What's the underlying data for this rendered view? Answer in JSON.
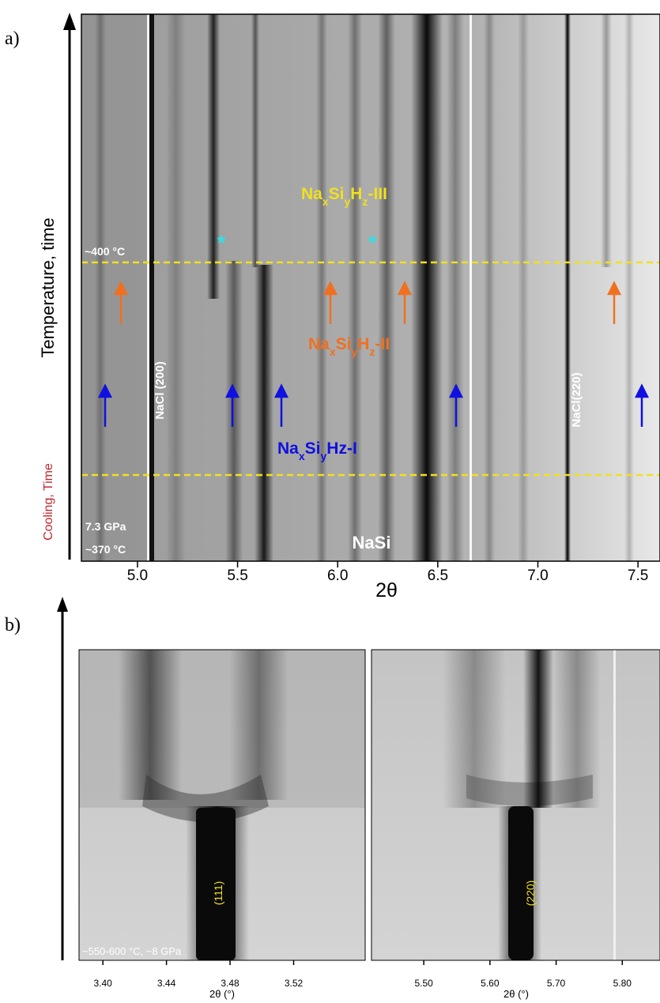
{
  "panel_a": {
    "label": "a)",
    "y_label": "Temperature, time",
    "x_label": "2θ",
    "xlim": [
      4.72,
      7.61
    ],
    "xticks": [
      {
        "value": 5.0,
        "label": "5.0"
      },
      {
        "value": 5.5,
        "label": "5.5"
      },
      {
        "value": 6.0,
        "label": "6.0"
      },
      {
        "value": 6.5,
        "label": "6.5"
      },
      {
        "value": 7.0,
        "label": "7.0"
      },
      {
        "value": 7.5,
        "label": "7.5"
      }
    ],
    "phases": {
      "III": [
        "Na",
        "x",
        "Si",
        "y",
        "H",
        "z",
        "-III"
      ],
      "II": [
        "Na",
        "x",
        "Si",
        "y",
        "H",
        "z",
        "-II"
      ],
      "I": [
        "Na",
        "x",
        "Si",
        "y",
        "Hz-I"
      ]
    },
    "annotations": {
      "temperature_top": "~400 °C",
      "pressure": "7.3 GPa",
      "temperature_bottom": "~370 °C",
      "nacl_200": "NaCl (200)",
      "nacl_220": "NaCl(220)",
      "nasi": "NaSi",
      "marker_1": "*",
      "marker_2": "*"
    }
  },
  "panel_b": {
    "label": "b)",
    "y_label": "Cooling, Time",
    "conditions": "~550-600 °C, ~8 GPa",
    "left": {
      "x_label": "2θ (°)",
      "peak": "(111)",
      "xlim": [
        3.385,
        3.565
      ],
      "xticks": [
        {
          "value": 3.4,
          "label": "3.40"
        },
        {
          "value": 3.44,
          "label": "3.44"
        },
        {
          "value": 3.48,
          "label": "3.48"
        },
        {
          "value": 3.52,
          "label": "3.52"
        }
      ]
    },
    "right": {
      "x_label": "2θ (°)",
      "peak": "(220)",
      "xlim": [
        5.421,
        5.857
      ],
      "xticks": [
        {
          "value": 5.5,
          "label": "5.50"
        },
        {
          "value": 5.6,
          "label": "5.60"
        },
        {
          "value": 5.7,
          "label": "5.70"
        },
        {
          "value": 5.8,
          "label": "5.80"
        }
      ]
    }
  }
}
